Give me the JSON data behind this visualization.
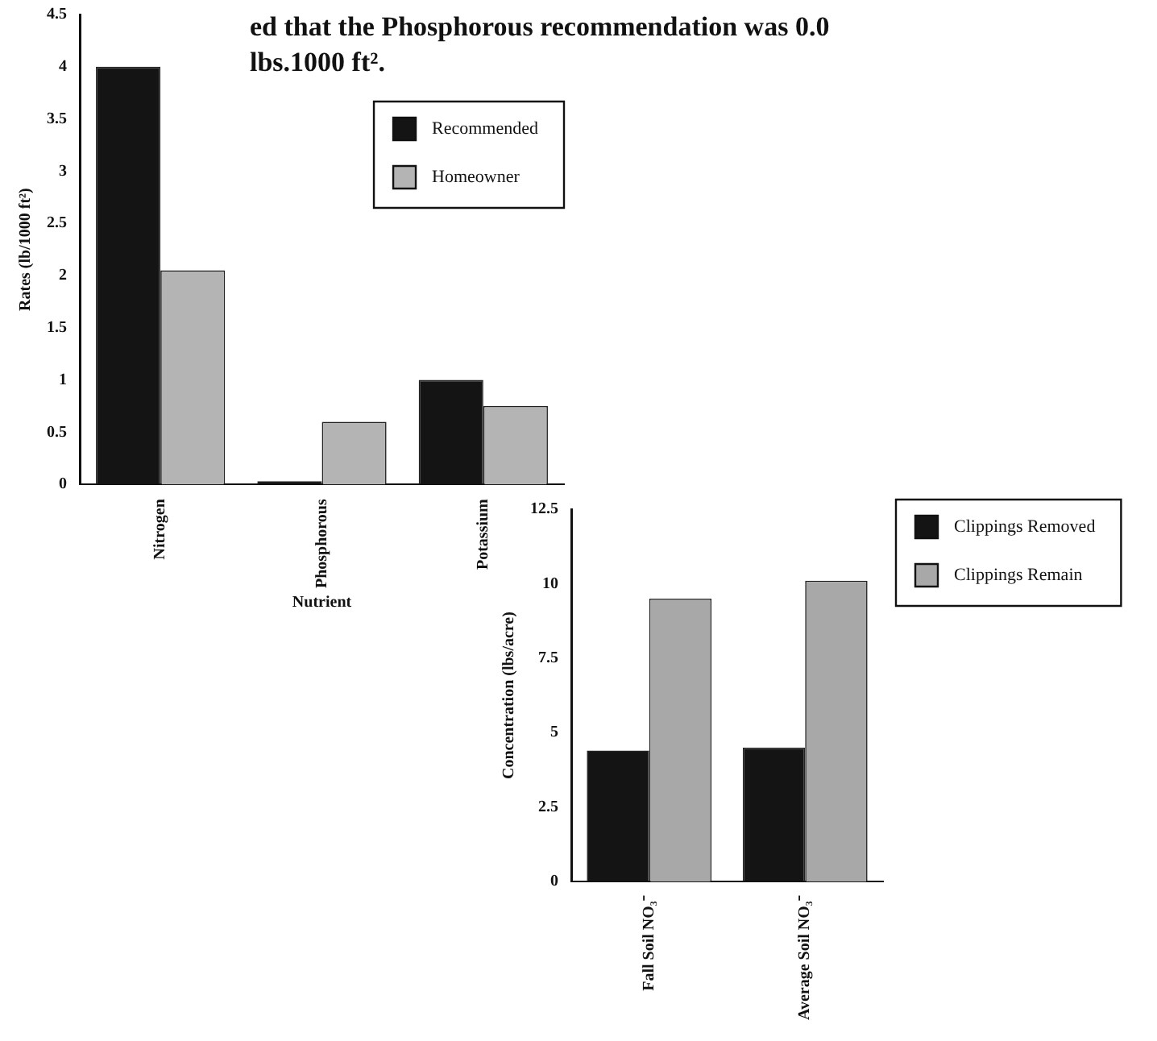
{
  "chart_data": [
    {
      "type": "bar",
      "ylabel": "Rates (lb/1000 ft²)",
      "xlabel": "Nutrient",
      "annotations": [
        "ed that the Phosphorous recommendation was 0.0 lbs.1000 ft²."
      ],
      "categories": [
        "Nitrogen",
        "Phosphorous",
        "Potassium"
      ],
      "series": [
        {
          "name": "Recommended",
          "color": "#141414",
          "values": [
            4.0,
            0.03,
            1.0
          ]
        },
        {
          "name": "Homeowner",
          "color": "#b4b4b4",
          "values": [
            2.05,
            0.6,
            0.75
          ]
        }
      ],
      "ylim": [
        0,
        4.5
      ],
      "yticks": [
        0,
        0.5,
        1,
        1.5,
        2,
        2.5,
        3,
        3.5,
        4,
        4.5
      ],
      "grid": false,
      "legend": "top right"
    },
    {
      "type": "bar",
      "ylabel": "Concentration (lbs/acre)",
      "categories": [
        "Fall Soil NO₃⁻",
        "Average Soil NO₃⁻"
      ],
      "series": [
        {
          "name": "Clippings Removed",
          "color": "#141414",
          "values": [
            4.4,
            4.5
          ]
        },
        {
          "name": "Clippings Remain",
          "color": "#a8a8a8",
          "values": [
            9.5,
            10.1
          ]
        }
      ],
      "ylim": [
        0,
        12.5
      ],
      "yticks": [
        0,
        2.5,
        5,
        7.5,
        10,
        12.5
      ],
      "grid": false,
      "legend": "right"
    }
  ]
}
